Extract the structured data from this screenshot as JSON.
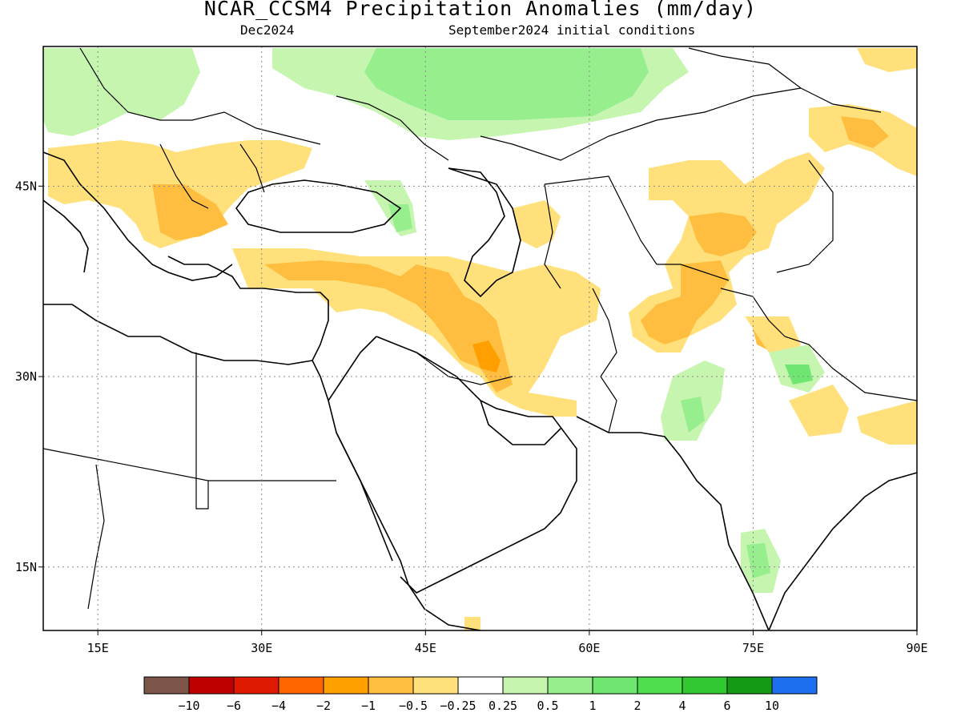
{
  "title": "NCAR_CCSM4 Precipitation Anomalies (mm/day)",
  "valid_month": "Dec2024",
  "initial_conditions": "September2024 initial conditions",
  "map": {
    "lon_range": [
      10,
      90
    ],
    "lat_range": [
      10,
      56
    ],
    "x_ticks": [
      {
        "lon": 15,
        "label": "15E"
      },
      {
        "lon": 30,
        "label": "30E"
      },
      {
        "lon": 45,
        "label": "45E"
      },
      {
        "lon": 60,
        "label": "60E"
      },
      {
        "lon": 75,
        "label": "75E"
      },
      {
        "lon": 90,
        "label": "90E"
      }
    ],
    "y_ticks": [
      {
        "lat": 15,
        "label": "15N"
      },
      {
        "lat": 30,
        "label": "30N"
      },
      {
        "lat": 45,
        "label": "45N"
      }
    ],
    "grid": "dotted"
  },
  "legend": {
    "colors": [
      "#7b5548",
      "#bf0000",
      "#e01a00",
      "#ff6600",
      "#ffa000",
      "#ffbe40",
      "#ffe07a",
      "#ffffff",
      "#c6f5b0",
      "#96ee8c",
      "#6ee670",
      "#4ede4e",
      "#32c832",
      "#149a14",
      "#1e6ef0"
    ],
    "labels": [
      "-10",
      "-6",
      "-4",
      "-2",
      "-1",
      "-0.5",
      "-0.25",
      "0.25",
      "0.5",
      "1",
      "2",
      "4",
      "6",
      "10"
    ]
  },
  "regions": [
    {
      "name": "balkans-anomaly",
      "level": -0.5,
      "color": "#ffe07a"
    },
    {
      "name": "turkey-anomaly",
      "level": -1,
      "color": "#ffbe40"
    },
    {
      "name": "iraq-iran-anomaly",
      "level": -2,
      "color": "#ffa000"
    },
    {
      "name": "afghanistan-anomaly",
      "level": -1,
      "color": "#ffbe40"
    },
    {
      "name": "tajik-anomaly",
      "level": -1,
      "color": "#ffbe40"
    },
    {
      "name": "russia-wet-anomaly",
      "level": 1,
      "color": "#96ee8c"
    },
    {
      "name": "indus-wet-anomaly",
      "level": 1,
      "color": "#96ee8c"
    },
    {
      "name": "nepal-wet-anomaly",
      "level": 2,
      "color": "#6ee670"
    },
    {
      "name": "india-wet-anomaly",
      "level": 1,
      "color": "#96ee8c"
    }
  ]
}
